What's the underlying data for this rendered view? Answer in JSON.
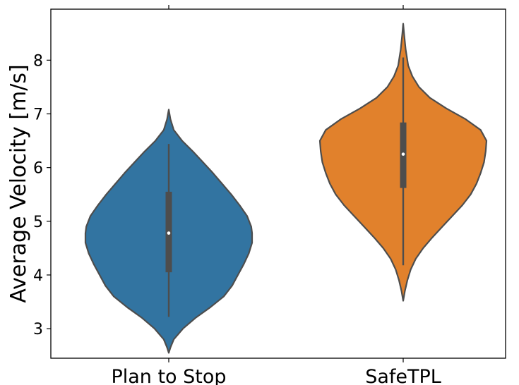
{
  "chart_data": {
    "type": "violin",
    "title": "",
    "xlabel": "",
    "ylabel": "Average Velocity [m/s]",
    "ylim": [
      2.45,
      8.95
    ],
    "yticks": [
      3,
      4,
      5,
      6,
      7,
      8
    ],
    "grid": false,
    "legend": "none",
    "categories": [
      "Plan to Stop",
      "SafeTPL"
    ],
    "series": [
      {
        "category": "Plan to Stop",
        "color": "#3274a1",
        "min": 3.22,
        "q1": 4.05,
        "median": 4.78,
        "q3": 5.55,
        "max": 6.44,
        "density_extent": [
          2.55,
          7.08
        ],
        "density": [
          [
            2.55,
            0.0
          ],
          [
            2.65,
            0.02
          ],
          [
            2.8,
            0.06
          ],
          [
            3.0,
            0.17
          ],
          [
            3.2,
            0.32
          ],
          [
            3.4,
            0.5
          ],
          [
            3.6,
            0.66
          ],
          [
            3.8,
            0.76
          ],
          [
            4.0,
            0.83
          ],
          [
            4.2,
            0.9
          ],
          [
            4.4,
            0.96
          ],
          [
            4.6,
            1.0
          ],
          [
            4.78,
            1.0
          ],
          [
            4.9,
            0.99
          ],
          [
            5.1,
            0.94
          ],
          [
            5.3,
            0.85
          ],
          [
            5.5,
            0.75
          ],
          [
            5.7,
            0.64
          ],
          [
            5.9,
            0.53
          ],
          [
            6.1,
            0.41
          ],
          [
            6.3,
            0.29
          ],
          [
            6.5,
            0.16
          ],
          [
            6.7,
            0.06
          ],
          [
            6.9,
            0.02
          ],
          [
            7.08,
            0.0
          ]
        ]
      },
      {
        "category": "SafeTPL",
        "color": "#e1812c",
        "min": 4.18,
        "q1": 5.62,
        "median": 6.25,
        "q3": 6.84,
        "max": 8.05,
        "density_extent": [
          3.52,
          8.68
        ],
        "density": [
          [
            3.52,
            0.0
          ],
          [
            3.7,
            0.02
          ],
          [
            3.9,
            0.05
          ],
          [
            4.1,
            0.09
          ],
          [
            4.3,
            0.15
          ],
          [
            4.5,
            0.24
          ],
          [
            4.7,
            0.35
          ],
          [
            4.9,
            0.47
          ],
          [
            5.1,
            0.59
          ],
          [
            5.3,
            0.71
          ],
          [
            5.5,
            0.81
          ],
          [
            5.7,
            0.88
          ],
          [
            5.9,
            0.93
          ],
          [
            6.1,
            0.97
          ],
          [
            6.3,
            0.99
          ],
          [
            6.5,
            1.0
          ],
          [
            6.7,
            0.93
          ],
          [
            6.9,
            0.75
          ],
          [
            7.1,
            0.52
          ],
          [
            7.3,
            0.32
          ],
          [
            7.5,
            0.19
          ],
          [
            7.7,
            0.11
          ],
          [
            7.9,
            0.06
          ],
          [
            8.2,
            0.03
          ],
          [
            8.5,
            0.01
          ],
          [
            8.68,
            0.0
          ]
        ]
      }
    ]
  }
}
